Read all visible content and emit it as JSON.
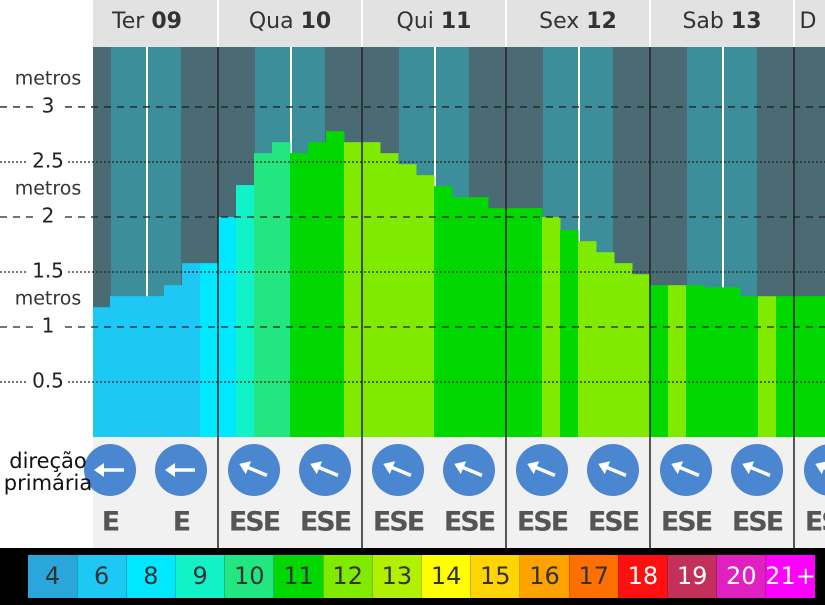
{
  "chart_data": {
    "type": "bar",
    "y_unit_label": "metros",
    "direction_label": [
      "direção",
      "primária"
    ],
    "days": [
      {
        "name": "Ter",
        "date": "09"
      },
      {
        "name": "Qua",
        "date": "10"
      },
      {
        "name": "Qui",
        "date": "11"
      },
      {
        "name": "Sex",
        "date": "12"
      },
      {
        "name": "Sab",
        "date": "13"
      },
      {
        "name": "D",
        "date": ""
      }
    ],
    "heights": [
      1.18,
      1.28,
      1.28,
      1.28,
      1.38,
      1.58,
      1.58,
      2.0,
      2.29,
      2.58,
      2.68,
      2.58,
      2.68,
      2.78,
      2.68,
      2.68,
      2.58,
      2.48,
      2.38,
      2.28,
      2.18,
      2.18,
      2.08,
      2.08,
      2.08,
      2.0,
      1.88,
      1.78,
      1.68,
      1.58,
      1.48,
      1.38,
      1.38,
      1.38,
      1.36,
      1.36,
      1.28,
      1.28,
      1.28,
      1.28,
      1.28
    ],
    "periods": [
      6,
      6,
      6,
      6,
      6,
      6,
      8,
      8,
      9,
      10,
      10,
      11,
      11,
      11,
      12,
      12,
      12,
      12,
      12,
      11,
      11,
      11,
      11,
      11,
      11,
      12,
      11,
      12,
      12,
      12,
      12,
      11,
      12,
      11,
      11,
      11,
      11,
      12,
      11,
      11,
      11
    ],
    "ylim": [
      0,
      3.545
    ],
    "yticks": [
      0.5,
      1,
      1.5,
      2,
      2.5,
      3
    ],
    "directions": [
      {
        "label": "E",
        "deg": 90
      },
      {
        "label": "E",
        "deg": 90
      },
      {
        "label": "ESE",
        "deg": 112.5
      },
      {
        "label": "ESE",
        "deg": 112.5
      },
      {
        "label": "ESE",
        "deg": 112.5
      },
      {
        "label": "ESE",
        "deg": 112.5
      },
      {
        "label": "ESE",
        "deg": 112.5
      },
      {
        "label": "ESE",
        "deg": 112.5
      },
      {
        "label": "ESE",
        "deg": 112.5
      },
      {
        "label": "ESE",
        "deg": 112.5
      },
      {
        "label": "ESE",
        "deg": 112.5
      }
    ],
    "legend": [
      {
        "value": 4,
        "color": "#2aa6dc"
      },
      {
        "value": 6,
        "color": "#1ec8f5"
      },
      {
        "value": 8,
        "color": "#00e8ff"
      },
      {
        "value": 9,
        "color": "#12f2c8"
      },
      {
        "value": 10,
        "color": "#22e680"
      },
      {
        "value": 11,
        "color": "#00d800"
      },
      {
        "value": 12,
        "color": "#80ea00"
      },
      {
        "value": 13,
        "color": "#b0f000"
      },
      {
        "value": 14,
        "color": "#ffff00"
      },
      {
        "value": 15,
        "color": "#ffd400"
      },
      {
        "value": 16,
        "color": "#ffa200"
      },
      {
        "value": 17,
        "color": "#ff7000"
      },
      {
        "value": 18,
        "color": "#ff1010"
      },
      {
        "value": 19,
        "color": "#c4305c"
      },
      {
        "value": 20,
        "color": "#e020c0"
      },
      {
        "value": {
          "value": 21,
          "label": "21+"
        },
        "color": "#ff00ff"
      }
    ]
  }
}
